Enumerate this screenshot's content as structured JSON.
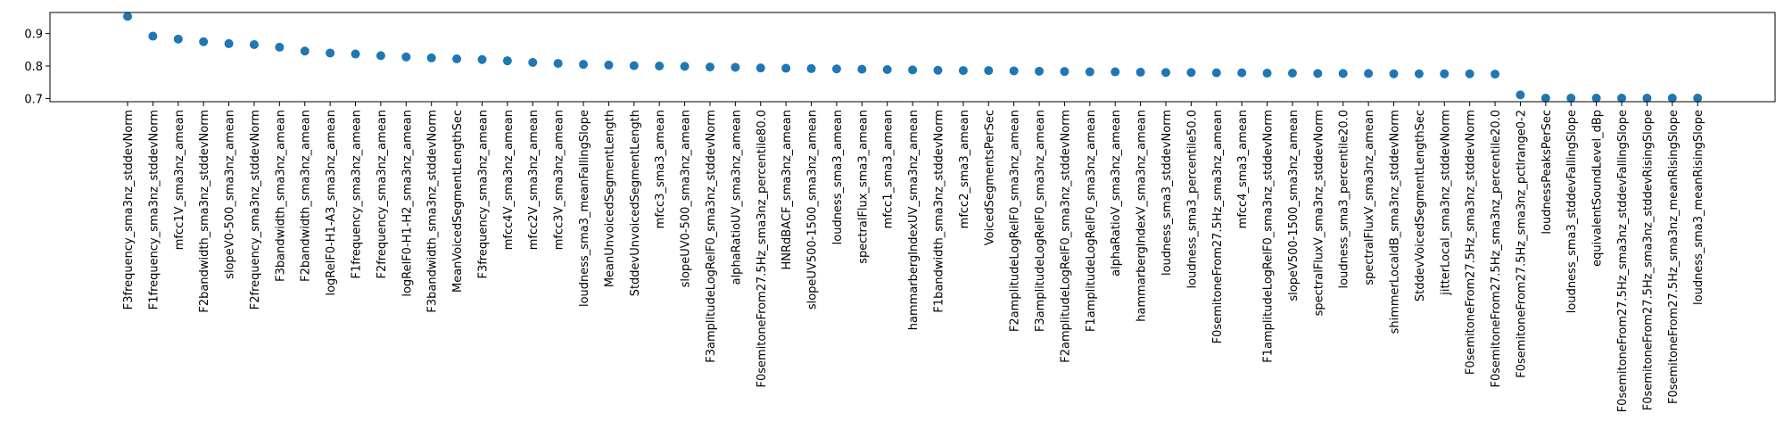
{
  "chart_data": {
    "type": "scatter",
    "title": "",
    "xlabel": "",
    "ylabel": "",
    "ylim": [
      0.69,
      0.965
    ],
    "yticks": [
      0.7,
      0.8,
      0.9
    ],
    "ytick_labels": [
      "0.7",
      "0.8",
      "0.9"
    ],
    "grid": false,
    "legend": "none",
    "marker_color": "#1f77b4",
    "categories": [
      "F3frequency_sma3nz_stddevNorm",
      "F1frequency_sma3nz_stddevNorm",
      "mfcc1V_sma3nz_amean",
      "F2bandwidth_sma3nz_stddevNorm",
      "slopeV0-500_sma3nz_amean",
      "F2frequency_sma3nz_stddevNorm",
      "F3bandwidth_sma3nz_amean",
      "F2bandwidth_sma3nz_amean",
      "logRelF0-H1-A3_sma3nz_amean",
      "F1frequency_sma3nz_amean",
      "F2frequency_sma3nz_amean",
      "logRelF0-H1-H2_sma3nz_amean",
      "F3bandwidth_sma3nz_stddevNorm",
      "MeanVoicedSegmentLengthSec",
      "F3frequency_sma3nz_amean",
      "mfcc4V_sma3nz_amean",
      "mfcc2V_sma3nz_amean",
      "mfcc3V_sma3nz_amean",
      "loudness_sma3_meanFallingSlope",
      "MeanUnvoicedSegmentLength",
      "StddevUnvoicedSegmentLength",
      "mfcc3_sma3_amean",
      "slopeUV0-500_sma3nz_amean",
      "F3amplitudeLogRelF0_sma3nz_stddevNorm",
      "alphaRatioUV_sma3nz_amean",
      "F0semitoneFrom27.5Hz_sma3nz_percentile80.0",
      "HNRdBACF_sma3nz_amean",
      "slopeUV500-1500_sma3nz_amean",
      "loudness_sma3_amean",
      "spectralFlux_sma3_amean",
      "mfcc1_sma3_amean",
      "hammarbergIndexUV_sma3nz_amean",
      "F1bandwidth_sma3nz_stddevNorm",
      "mfcc2_sma3_amean",
      "VoicedSegmentsPerSec",
      "F2amplitudeLogRelF0_sma3nz_amean",
      "F3amplitudeLogRelF0_sma3nz_amean",
      "F2amplitudeLogRelF0_sma3nz_stddevNorm",
      "F1amplitudeLogRelF0_sma3nz_amean",
      "alphaRatioV_sma3nz_amean",
      "hammarbergIndexV_sma3nz_amean",
      "loudness_sma3_stddevNorm",
      "loudness_sma3_percentile50.0",
      "F0semitoneFrom27.5Hz_sma3nz_amean",
      "mfcc4_sma3_amean",
      "F1amplitudeLogRelF0_sma3nz_stddevNorm",
      "slopeV500-1500_sma3nz_amean",
      "spectralFluxV_sma3nz_stddevNorm",
      "loudness_sma3_percentile20.0",
      "spectralFluxV_sma3nz_amean",
      "shimmerLocaldB_sma3nz_stddevNorm",
      "StddevVoicedSegmentLengthSec",
      "jitterLocal_sma3nz_stddevNorm",
      "F0semitoneFrom27.5Hz_sma3nz_stddevNorm",
      "F0semitoneFrom27.5Hz_sma3nz_percentile20.0",
      "F0semitoneFrom27.5Hz_sma3nz_pctlrange0-2",
      "loudnessPeaksPerSec",
      "loudness_sma3_stddevFallingSlope",
      "equivalentSoundLevel_dBp",
      "F0semitoneFrom27.5Hz_sma3nz_stddevFallingSlope",
      "F0semitoneFrom27.5Hz_sma3nz_stddevRisingSlope",
      "F0semitoneFrom27.5Hz_sma3nz_meanRisingSlope",
      "loudness_sma3_meanRisingSlope"
    ],
    "values": [
      0.953,
      0.892,
      0.883,
      0.875,
      0.869,
      0.866,
      0.858,
      0.846,
      0.84,
      0.837,
      0.832,
      0.828,
      0.825,
      0.822,
      0.82,
      0.816,
      0.811,
      0.808,
      0.805,
      0.803,
      0.801,
      0.8,
      0.799,
      0.797,
      0.796,
      0.794,
      0.793,
      0.792,
      0.791,
      0.79,
      0.789,
      0.788,
      0.787,
      0.786,
      0.786,
      0.785,
      0.784,
      0.783,
      0.782,
      0.782,
      0.781,
      0.78,
      0.78,
      0.779,
      0.779,
      0.778,
      0.778,
      0.777,
      0.777,
      0.777,
      0.776,
      0.776,
      0.776,
      0.776,
      0.775,
      0.711,
      0.701,
      0.701,
      0.701,
      0.701,
      0.701,
      0.701,
      0.701
    ]
  }
}
